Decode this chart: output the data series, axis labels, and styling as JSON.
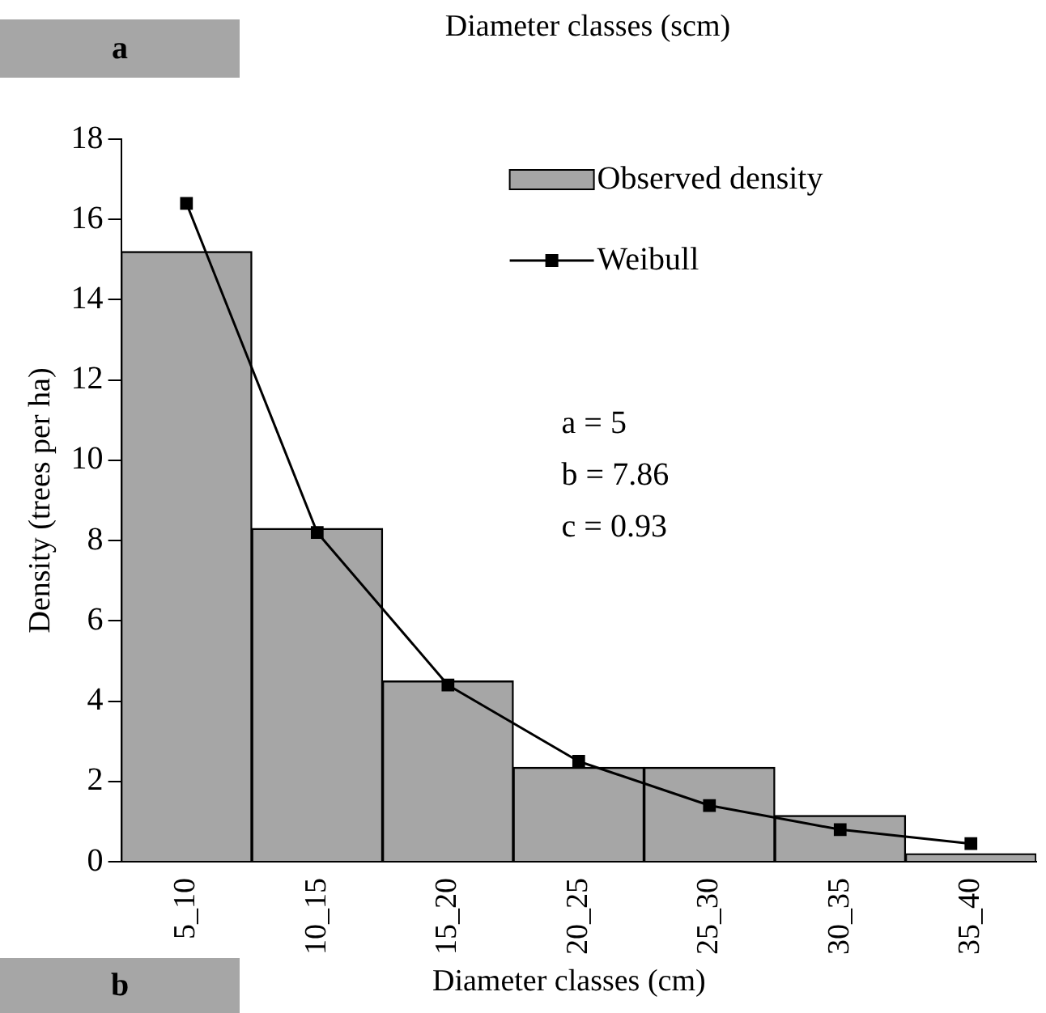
{
  "chart_data": {
    "type": "bar",
    "title": "Diameter classes (scm)",
    "ylabel": "Density (trees per ha)",
    "categories": [
      "5_10",
      "10_15",
      "15_20",
      "20_25",
      "25_30",
      "30_35",
      "35_40"
    ],
    "series": [
      {
        "name": "Observed density",
        "color": "#a6a6a6",
        "values": [
          15.2,
          8.3,
          4.5,
          2.35,
          2.35,
          1.15,
          0.2
        ]
      },
      {
        "name": "Weibull",
        "type": "line",
        "color": "#000000",
        "marker": "square",
        "values": [
          16.4,
          8.2,
          4.4,
          2.5,
          1.4,
          0.8,
          0.45
        ]
      }
    ],
    "ylim": [
      0,
      18
    ],
    "yticks": [
      0,
      2,
      4,
      6,
      8,
      10,
      12,
      14,
      16,
      18
    ],
    "grid": false,
    "legend": "top right",
    "annotations": [
      "a",
      "a = 5",
      "b = 7.86",
      "c = 0.93",
      "b",
      "Diameter classes (cm)"
    ]
  }
}
